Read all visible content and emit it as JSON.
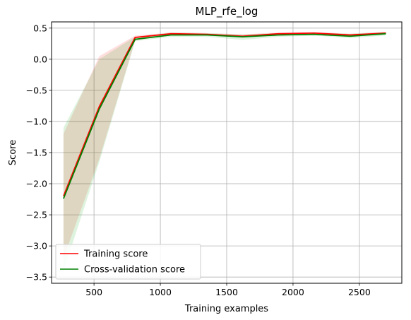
{
  "chart_data": {
    "type": "line",
    "title": "MLP_rfe_log",
    "xlabel": "Training examples",
    "ylabel": "Score",
    "xlim": [
      180,
      2820
    ],
    "ylim": [
      -3.6,
      0.6
    ],
    "xticks": [
      500,
      1000,
      1500,
      2000,
      2500
    ],
    "yticks": [
      0.5,
      0.0,
      -0.5,
      -1.0,
      -1.5,
      -2.0,
      -2.5,
      -3.0,
      -3.5
    ],
    "xtick_labels": [
      "500",
      "1000",
      "1500",
      "2000",
      "2500"
    ],
    "ytick_labels": [
      "0.5",
      "0.0",
      "−0.5",
      "−1.0",
      "−1.5",
      "−2.0",
      "−2.5",
      "−3.0",
      "−3.5"
    ],
    "grid": true,
    "legend_position": "lower-left",
    "x": [
      270,
      540,
      810,
      1080,
      1350,
      1620,
      1890,
      2160,
      2430,
      2700
    ],
    "series": [
      {
        "name": "Training score",
        "color": "#ff0000",
        "band_color": "#ff0000",
        "values": [
          -2.2,
          -0.76,
          0.35,
          0.41,
          0.4,
          0.37,
          0.41,
          0.42,
          0.39,
          0.42
        ],
        "upper": [
          -1.2,
          0.05,
          0.38,
          0.43,
          0.42,
          0.4,
          0.43,
          0.44,
          0.41,
          0.44
        ],
        "lower": [
          -3.2,
          -1.6,
          0.3,
          0.39,
          0.38,
          0.35,
          0.39,
          0.4,
          0.37,
          0.4
        ]
      },
      {
        "name": "Cross-validation score",
        "color": "#008000",
        "band_color": "#00a000",
        "values": [
          -2.24,
          -0.8,
          0.32,
          0.39,
          0.39,
          0.36,
          0.39,
          0.4,
          0.37,
          0.41
        ],
        "upper": [
          -1.1,
          0.0,
          0.36,
          0.43,
          0.42,
          0.4,
          0.42,
          0.43,
          0.41,
          0.44
        ],
        "lower": [
          -3.4,
          -1.65,
          0.29,
          0.36,
          0.36,
          0.31,
          0.36,
          0.38,
          0.34,
          0.38
        ]
      }
    ]
  }
}
